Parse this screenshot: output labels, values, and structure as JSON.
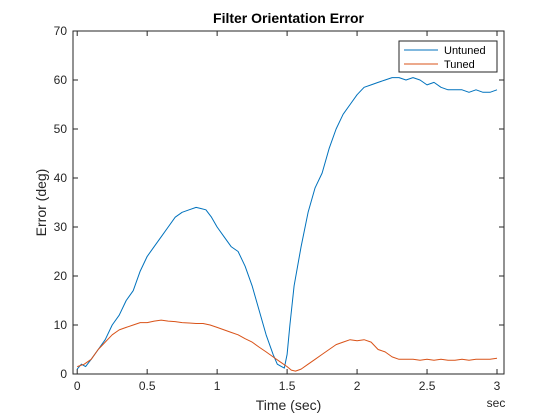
{
  "chart_data": {
    "type": "line",
    "title": "Filter Orientation Error",
    "xlabel": "Time (sec)",
    "ylabel": "Error (deg)",
    "x_units_label": "sec",
    "xlim": [
      -0.03,
      3.05
    ],
    "ylim": [
      0,
      70
    ],
    "xticks": [
      0,
      0.5,
      1,
      1.5,
      2,
      2.5,
      3
    ],
    "xtick_labels": [
      "0",
      "0.5",
      "1",
      "1.5",
      "2",
      "2.5",
      "3"
    ],
    "yticks": [
      0,
      10,
      20,
      30,
      40,
      50,
      60,
      70
    ],
    "ytick_labels": [
      "0",
      "10",
      "20",
      "30",
      "40",
      "50",
      "60",
      "70"
    ],
    "grid": false,
    "legend_position": "top-right",
    "series": [
      {
        "name": "Untuned",
        "color": "#0072BD",
        "x": [
          0,
          0.03,
          0.06,
          0.1,
          0.15,
          0.2,
          0.25,
          0.3,
          0.35,
          0.4,
          0.45,
          0.5,
          0.55,
          0.6,
          0.65,
          0.7,
          0.75,
          0.8,
          0.85,
          0.88,
          0.92,
          0.96,
          1.0,
          1.05,
          1.1,
          1.15,
          1.2,
          1.25,
          1.3,
          1.35,
          1.4,
          1.43,
          1.46,
          1.48,
          1.5,
          1.52,
          1.55,
          1.6,
          1.65,
          1.7,
          1.75,
          1.8,
          1.85,
          1.9,
          1.95,
          2.0,
          2.05,
          2.1,
          2.15,
          2.2,
          2.25,
          2.3,
          2.35,
          2.4,
          2.45,
          2.5,
          2.55,
          2.6,
          2.65,
          2.7,
          2.75,
          2.8,
          2.85,
          2.9,
          2.95,
          3.0
        ],
        "y": [
          1,
          2,
          1.5,
          3,
          5,
          7,
          10,
          12,
          15,
          17,
          21,
          24,
          26,
          28,
          30,
          32,
          33,
          33.5,
          34,
          33.8,
          33.5,
          32,
          30,
          28,
          26,
          25,
          22,
          18,
          13,
          8,
          4,
          2,
          1.5,
          1.2,
          4,
          10,
          18,
          26,
          33,
          38,
          41,
          46,
          50,
          53,
          55,
          57,
          58.5,
          59,
          59.5,
          60,
          60.5,
          60.5,
          60,
          60.5,
          60,
          59,
          59.5,
          58.5,
          58,
          58,
          58,
          57.5,
          58,
          57.5,
          57.5,
          58
        ]
      },
      {
        "name": "Tuned",
        "color": "#D95319",
        "x": [
          0,
          0.05,
          0.1,
          0.15,
          0.2,
          0.25,
          0.3,
          0.35,
          0.4,
          0.45,
          0.5,
          0.55,
          0.6,
          0.65,
          0.7,
          0.75,
          0.8,
          0.85,
          0.9,
          0.95,
          1.0,
          1.05,
          1.1,
          1.15,
          1.2,
          1.25,
          1.3,
          1.35,
          1.4,
          1.45,
          1.5,
          1.53,
          1.56,
          1.6,
          1.65,
          1.7,
          1.75,
          1.8,
          1.85,
          1.9,
          1.95,
          2.0,
          2.05,
          2.1,
          2.15,
          2.2,
          2.25,
          2.3,
          2.35,
          2.4,
          2.45,
          2.5,
          2.55,
          2.6,
          2.65,
          2.7,
          2.75,
          2.8,
          2.85,
          2.9,
          2.95,
          3.0
        ],
        "y": [
          1.5,
          2,
          3,
          5,
          6.5,
          8,
          9,
          9.5,
          10,
          10.5,
          10.5,
          10.8,
          11,
          10.8,
          10.7,
          10.5,
          10.4,
          10.3,
          10.3,
          10,
          9.5,
          9,
          8.5,
          8,
          7.2,
          6.5,
          5.5,
          4.5,
          3.5,
          2.5,
          1.5,
          0.8,
          0.6,
          1,
          2,
          3,
          4,
          5,
          6,
          6.5,
          7,
          6.8,
          7,
          6.5,
          5,
          4.5,
          3.5,
          3,
          3,
          3,
          2.8,
          3,
          2.8,
          3,
          2.8,
          2.8,
          3,
          2.8,
          3,
          3,
          3,
          3.2
        ]
      }
    ]
  }
}
